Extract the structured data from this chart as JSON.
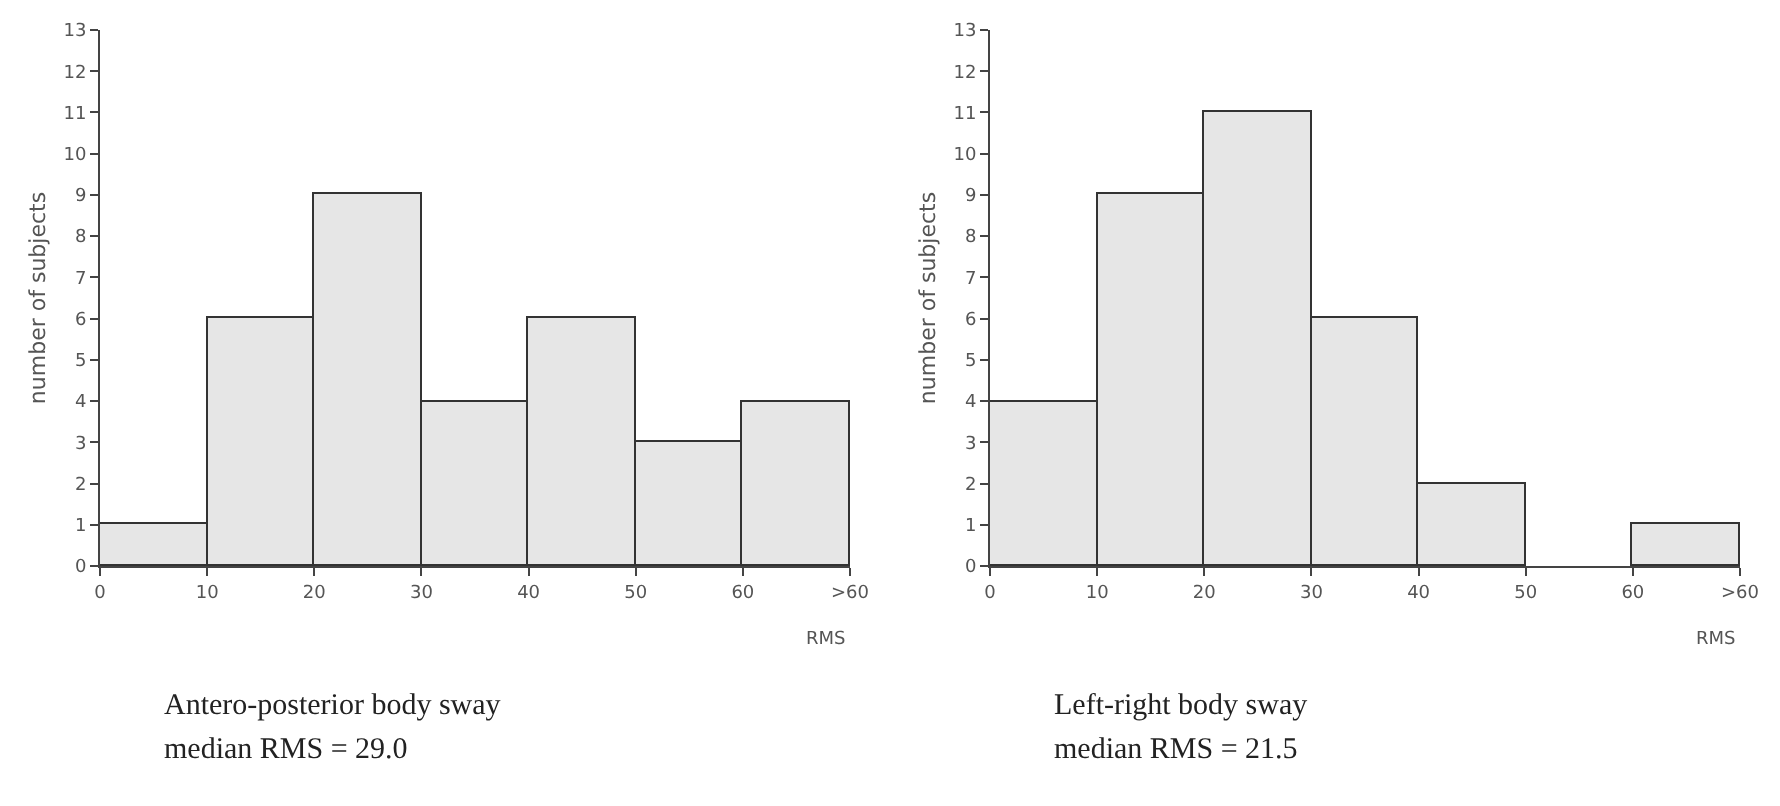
{
  "chart_data": [
    {
      "type": "histogram",
      "xlabel": "RMS",
      "ylabel": "number of subjects",
      "bins": [
        0,
        10,
        20,
        30,
        40,
        50,
        60,
        70
      ],
      "values": [
        1,
        6,
        9,
        4,
        6,
        3,
        4
      ],
      "color": "#e6e6e6",
      "xlim": [
        0,
        70
      ],
      "xticks": [
        0,
        10,
        20,
        30,
        40,
        50,
        60,
        {
          "value": 70,
          "label": ">60"
        }
      ],
      "ylim": [
        0,
        13
      ],
      "yticks": [
        0,
        1,
        2,
        3,
        4,
        5,
        6,
        7,
        8,
        9,
        10,
        11,
        12,
        13
      ],
      "annotations": [
        "Antero-posterior body sway",
        "median RMS = 29.0"
      ]
    },
    {
      "type": "histogram",
      "xlabel": "RMS",
      "ylabel": "number of subjects",
      "bins": [
        0,
        10,
        20,
        30,
        40,
        50,
        60,
        70
      ],
      "values": [
        4,
        9,
        11,
        6,
        2,
        0,
        1
      ],
      "color": "#e6e6e6",
      "xlim": [
        0,
        70
      ],
      "xticks": [
        0,
        10,
        20,
        30,
        40,
        50,
        60,
        {
          "value": 70,
          "label": ">60"
        }
      ],
      "ylim": [
        0,
        13
      ],
      "yticks": [
        0,
        1,
        2,
        3,
        4,
        5,
        6,
        7,
        8,
        9,
        10,
        11,
        12,
        13
      ],
      "annotations": [
        "Left-right body sway",
        "median RMS = 21.5"
      ]
    }
  ]
}
